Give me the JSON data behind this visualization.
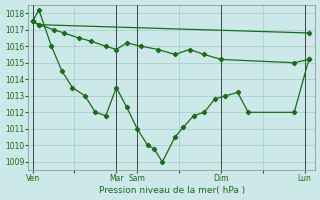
{
  "background_color": "#cce8e8",
  "grid_color": "#aacece",
  "line_color": "#1a6b1a",
  "xlabel": "Pression niveau de la mer( hPa )",
  "ylim": [
    1008.5,
    1018.5
  ],
  "yticks": [
    1009,
    1010,
    1011,
    1012,
    1013,
    1014,
    1015,
    1016,
    1017,
    1018
  ],
  "xtick_labels": [
    "Ven",
    "",
    "Mar",
    "Sam",
    "",
    "Dim",
    "",
    "Lun"
  ],
  "xtick_positions": [
    0,
    2,
    4,
    5,
    7,
    9,
    11,
    13
  ],
  "vlines_dark": [
    0,
    4,
    5,
    9,
    13
  ],
  "xlim": [
    -0.2,
    13.5
  ],
  "line1_x": [
    0,
    0.3,
    13.2
  ],
  "line1_y": [
    1017.5,
    1017.3,
    1016.8
  ],
  "line2_x": [
    0,
    0.3,
    1.0,
    1.5,
    2.2,
    2.8,
    3.5,
    4.0,
    4.5,
    5.2,
    6.0,
    6.8,
    7.5,
    8.2,
    9.0,
    12.5,
    13.2
  ],
  "line2_y": [
    1017.5,
    1017.3,
    1017.0,
    1016.8,
    1016.5,
    1016.3,
    1016.0,
    1015.8,
    1016.2,
    1016.0,
    1015.8,
    1015.5,
    1015.8,
    1015.5,
    1015.2,
    1015.0,
    1015.2
  ],
  "line3_x": [
    0,
    0.3,
    0.9,
    1.4,
    1.9,
    2.5,
    3.0,
    3.5,
    4.0,
    4.5,
    5.0,
    5.5,
    5.8,
    6.2,
    6.8,
    7.2,
    7.7,
    8.2,
    8.7,
    9.2,
    9.8,
    10.3,
    12.5,
    13.2
  ],
  "line3_y": [
    1017.5,
    1018.2,
    1016.0,
    1014.5,
    1013.5,
    1013.0,
    1012.0,
    1011.8,
    1013.5,
    1012.3,
    1011.0,
    1010.0,
    1009.8,
    1009.0,
    1010.5,
    1011.1,
    1011.8,
    1012.0,
    1012.8,
    1013.0,
    1013.2,
    1012.0,
    1012.0,
    1015.2
  ]
}
